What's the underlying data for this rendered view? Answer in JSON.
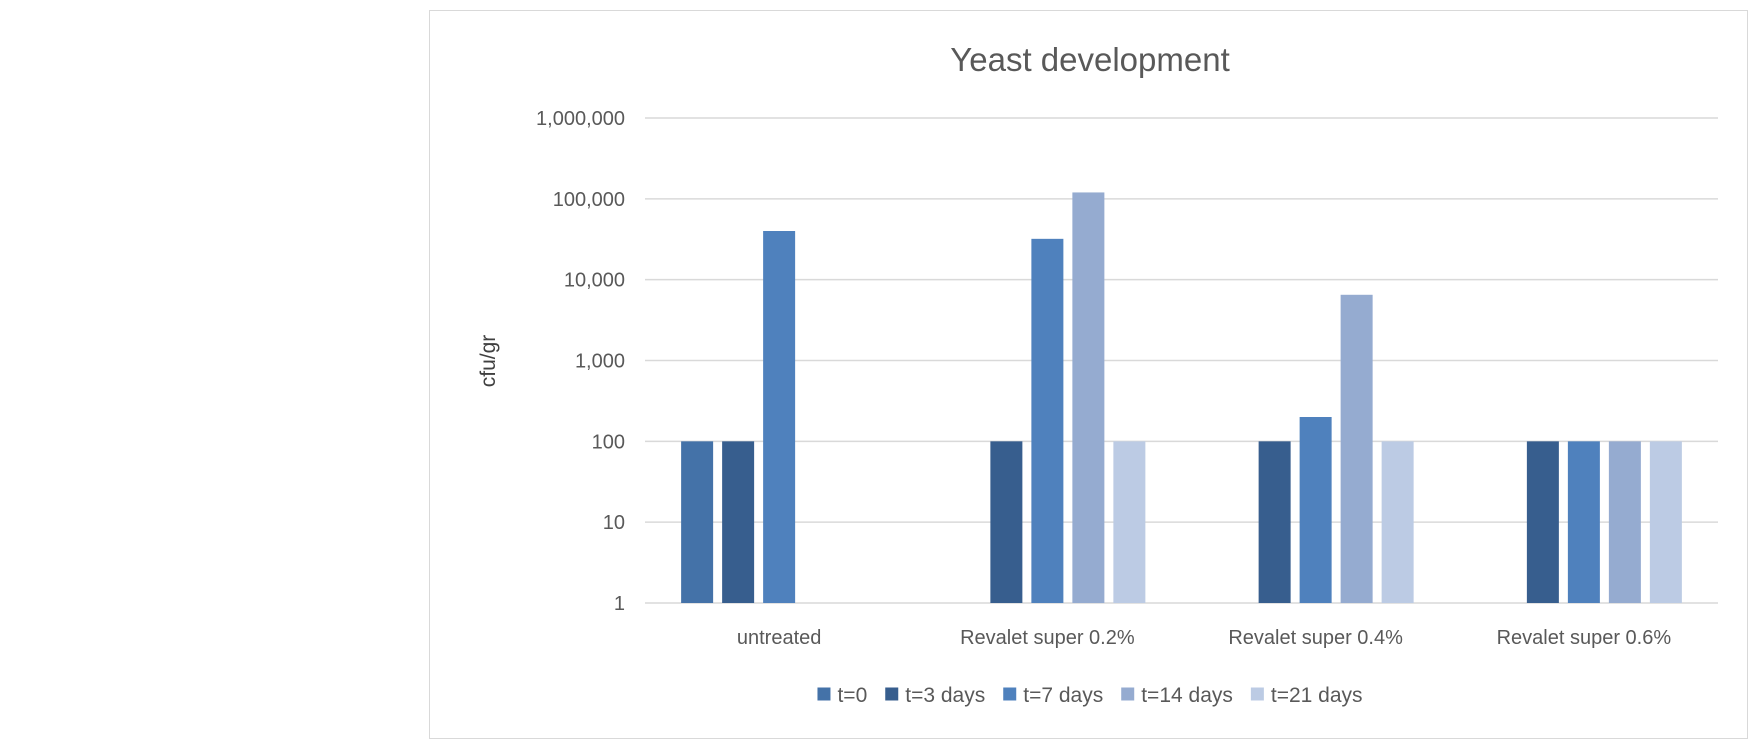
{
  "chart_data": {
    "type": "bar",
    "title": "Yeast development",
    "xlabel": "",
    "ylabel": "cfu/gr",
    "y_scale": "log",
    "ylim": [
      1,
      1000000
    ],
    "y_ticks": [
      1,
      10,
      100,
      1000,
      10000,
      100000,
      1000000
    ],
    "y_tick_labels": [
      "1",
      "10",
      "100",
      "1,000",
      "10,000",
      "100,000",
      "1,000,000"
    ],
    "categories": [
      "untreated",
      "Revalet super 0.2%",
      "Revalet super 0.4%",
      "Revalet super 0.6%"
    ],
    "series": [
      {
        "name": "t=0",
        "color": "#4472a8",
        "values": [
          100,
          null,
          null,
          null
        ]
      },
      {
        "name": "t=3 days",
        "color": "#375e8e",
        "values": [
          100,
          100,
          100,
          100
        ]
      },
      {
        "name": "t=7 days",
        "color": "#4f81bd",
        "values": [
          40000,
          32000,
          200,
          100
        ]
      },
      {
        "name": "t=14 days",
        "color": "#95abd0",
        "values": [
          null,
          120000,
          6500,
          100
        ]
      },
      {
        "name": "t=21 days",
        "color": "#bccbe4",
        "values": [
          null,
          100,
          100,
          100
        ]
      }
    ],
    "grid": true,
    "legend_position": "bottom",
    "gridline_color": "#d9d9d9"
  }
}
